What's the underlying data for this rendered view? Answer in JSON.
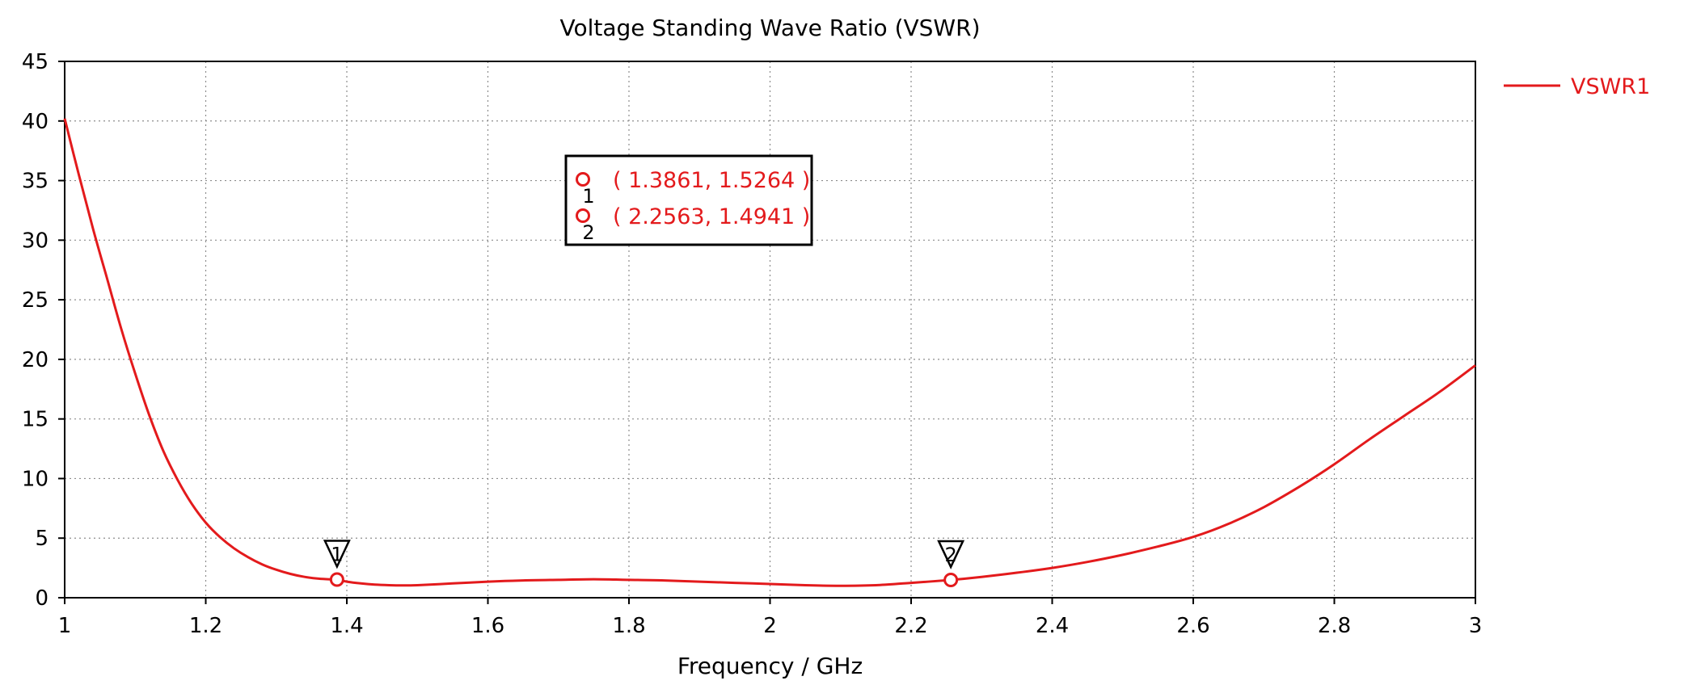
{
  "chart_data": {
    "type": "line",
    "title": "Voltage Standing Wave Ratio (VSWR)",
    "xlabel": "Frequency / GHz",
    "ylabel": "",
    "xlim": [
      1,
      3
    ],
    "ylim": [
      0,
      45
    ],
    "xticks": [
      1,
      1.2,
      1.4,
      1.6,
      1.8,
      2,
      2.2,
      2.4,
      2.6,
      2.8,
      3
    ],
    "xtick_labels": [
      "1",
      "1.2",
      "1.4",
      "1.6",
      "1.8",
      "2",
      "2.2",
      "2.4",
      "2.6",
      "2.8",
      "3"
    ],
    "yticks": [
      0,
      5,
      10,
      15,
      20,
      25,
      30,
      35,
      40,
      45
    ],
    "ytick_labels": [
      "0",
      "5",
      "10",
      "15",
      "20",
      "25",
      "30",
      "35",
      "40",
      "45"
    ],
    "grid": true,
    "legend_position": "top-right outside",
    "series": [
      {
        "name": "VSWR1",
        "color": "#e31a1c",
        "x": [
          1.0,
          1.02,
          1.04,
          1.06,
          1.08,
          1.1,
          1.12,
          1.14,
          1.16,
          1.18,
          1.2,
          1.22,
          1.24,
          1.26,
          1.28,
          1.3,
          1.32,
          1.34,
          1.36,
          1.38,
          1.3861,
          1.4,
          1.42,
          1.44,
          1.46,
          1.48,
          1.5,
          1.55,
          1.6,
          1.65,
          1.7,
          1.75,
          1.8,
          1.85,
          1.9,
          1.95,
          2.0,
          2.05,
          2.1,
          2.15,
          2.2,
          2.2563,
          2.3,
          2.35,
          2.4,
          2.45,
          2.5,
          2.55,
          2.6,
          2.65,
          2.7,
          2.75,
          2.8,
          2.85,
          2.9,
          2.95,
          3.0
        ],
        "y": [
          40.2,
          35.5,
          31.0,
          26.8,
          22.6,
          18.8,
          15.3,
          12.3,
          9.9,
          7.9,
          6.3,
          5.1,
          4.15,
          3.4,
          2.8,
          2.35,
          2.0,
          1.75,
          1.6,
          1.53,
          1.5264,
          1.35,
          1.2,
          1.1,
          1.05,
          1.03,
          1.05,
          1.2,
          1.35,
          1.45,
          1.5,
          1.55,
          1.5,
          1.45,
          1.35,
          1.25,
          1.15,
          1.05,
          1.0,
          1.05,
          1.25,
          1.4941,
          1.75,
          2.1,
          2.5,
          3.0,
          3.6,
          4.3,
          5.1,
          6.2,
          7.6,
          9.3,
          11.2,
          13.3,
          15.3,
          17.3,
          19.5
        ]
      }
    ],
    "markers": [
      {
        "id": "1",
        "x": 1.3861,
        "y": 1.5264,
        "label": "( 1.3861, 1.5264 )"
      },
      {
        "id": "2",
        "x": 2.2563,
        "y": 1.4941,
        "label": "( 2.2563, 1.4941 )"
      }
    ]
  }
}
